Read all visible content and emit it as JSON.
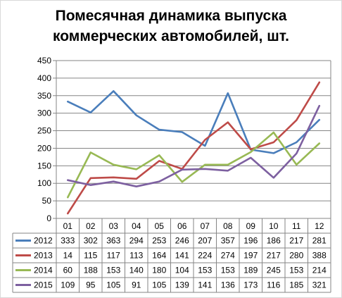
{
  "chart_data": {
    "type": "line",
    "title_lines": [
      "Помесячная динамика выпуска",
      "коммерческих автомобилей, шт."
    ],
    "categories": [
      "01",
      "02",
      "03",
      "04",
      "05",
      "06",
      "07",
      "08",
      "09",
      "10",
      "11",
      "12"
    ],
    "ylim": [
      0,
      450
    ],
    "yticks": [
      0,
      50,
      100,
      150,
      200,
      250,
      300,
      350,
      400,
      450
    ],
    "grid": true,
    "legend": "data-table",
    "series": [
      {
        "name": "2012",
        "color": "#4a7ebb",
        "values": [
          333,
          302,
          363,
          294,
          253,
          246,
          207,
          357,
          196,
          186,
          217,
          281
        ]
      },
      {
        "name": "2013",
        "color": "#be4b48",
        "values": [
          14,
          115,
          117,
          113,
          164,
          141,
          224,
          274,
          197,
          217,
          280,
          388
        ]
      },
      {
        "name": "2014",
        "color": "#98b954",
        "values": [
          60,
          188,
          153,
          140,
          180,
          104,
          153,
          153,
          189,
          245,
          153,
          214
        ]
      },
      {
        "name": "2015",
        "color": "#7d60a0",
        "values": [
          109,
          95,
          105,
          91,
          105,
          139,
          141,
          136,
          173,
          116,
          185,
          321
        ]
      }
    ]
  }
}
